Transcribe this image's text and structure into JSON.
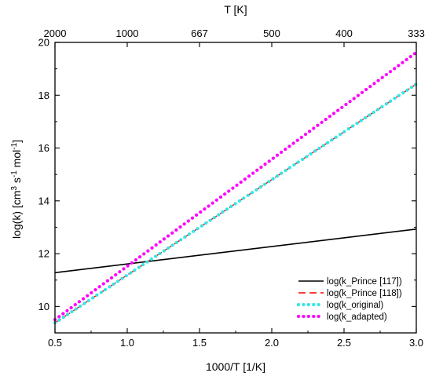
{
  "chart_data": {
    "type": "line",
    "xlabel": "1000/T [1/K]",
    "ylabel_main": "log(k) [cm",
    "ylabel_sup1": "3",
    "ylabel_mid": " s",
    "ylabel_sup2": "-1",
    "ylabel_mid2": " mol",
    "ylabel_sup3": "-1",
    "ylabel_end": "]",
    "top_axis_label": "T [K]",
    "xlim": [
      0.5,
      3.0
    ],
    "ylim": [
      9.0,
      20.0
    ],
    "x_ticks": [
      0.5,
      1.0,
      1.5,
      2.0,
      2.5,
      3.0
    ],
    "x_tick_labels": [
      "0.5",
      "1.0",
      "1.5",
      "2.0",
      "2.5",
      "3.0"
    ],
    "y_ticks": [
      10,
      12,
      14,
      16,
      18,
      20
    ],
    "y_tick_labels": [
      "10",
      "12",
      "14",
      "16",
      "18",
      "20"
    ],
    "top_ticks": [
      0.5,
      1.0,
      1.5,
      2.0,
      2.5,
      3.0
    ],
    "top_tick_labels": [
      "2000",
      "1000",
      "667",
      "500",
      "400",
      "333"
    ],
    "legend_position": "bottom-right",
    "series": [
      {
        "name": "log(k_Prince [117])",
        "color": "#000000",
        "style": "solid",
        "x": [
          0.5,
          3.0
        ],
        "y": [
          11.28,
          12.93
        ]
      },
      {
        "name": "log(k_Prince [118])",
        "color": "#ff0000",
        "style": "dashed",
        "x": [
          0.5,
          3.0
        ],
        "y": [
          9.38,
          18.42
        ]
      },
      {
        "name": "log(k_original)",
        "color": "#33e6e6",
        "style": "dotted",
        "x": [
          0.5,
          3.0
        ],
        "y": [
          9.38,
          18.42
        ]
      },
      {
        "name": "log(k_adapted)",
        "color": "#ff00ff",
        "style": "dotted",
        "x": [
          0.5,
          3.0
        ],
        "y": [
          9.5,
          19.62
        ]
      }
    ]
  }
}
